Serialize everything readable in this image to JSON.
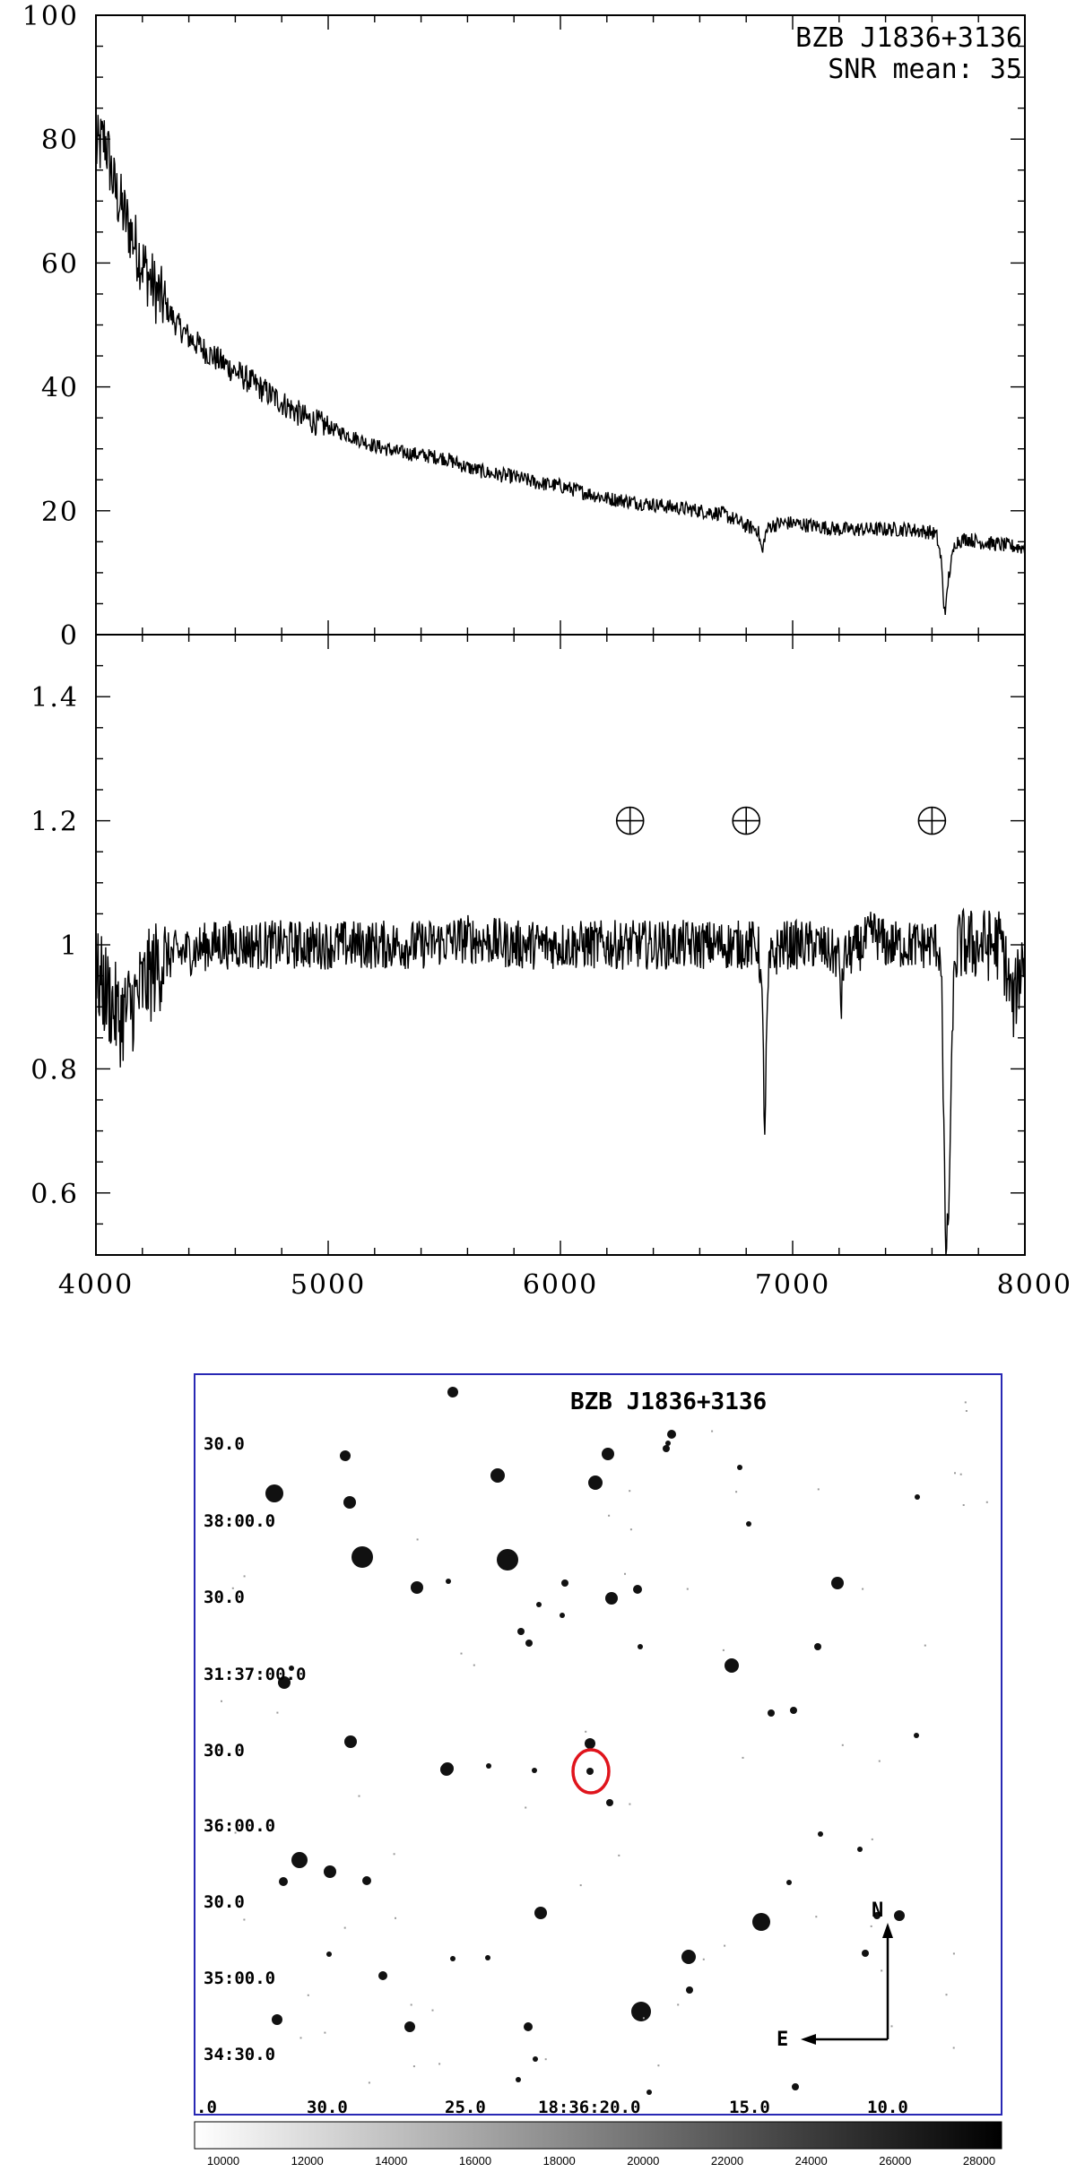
{
  "chart_data": [
    {
      "type": "line",
      "panel": "flux",
      "annotation": [
        "BZB J1836+3136",
        "SNR mean: 35"
      ],
      "xlim": [
        4000,
        8000
      ],
      "ylim": [
        0,
        100
      ],
      "y_ticks": [
        "0",
        "20",
        "40",
        "60",
        "80",
        "100"
      ],
      "series": [
        {
          "x": [
            4000,
            4040,
            4080,
            4120,
            4160,
            4200,
            4250,
            4300,
            4350,
            4400,
            4450,
            4500,
            4600,
            4700,
            4800,
            4900,
            5000,
            5100,
            5200,
            5300,
            5400,
            5500,
            5600,
            5700,
            5800,
            5900,
            6000,
            6100,
            6200,
            6300,
            6400,
            6500,
            6600,
            6700,
            6780,
            6800,
            6850,
            6870,
            6880,
            6900,
            6950,
            7000,
            7100,
            7200,
            7300,
            7400,
            7500,
            7600,
            7620,
            7640,
            7650,
            7660,
            7670,
            7680,
            7700,
            7750,
            7800,
            7900,
            8000
          ],
          "y": [
            78,
            80,
            72,
            68,
            64,
            60,
            56,
            53,
            50,
            48,
            46.5,
            45,
            42.5,
            40,
            37.5,
            35,
            33.5,
            32,
            30.5,
            29.5,
            29,
            28.5,
            27,
            26,
            25.5,
            24.5,
            24,
            23,
            22,
            21.5,
            21,
            20.5,
            20,
            19.5,
            18,
            17.5,
            17,
            13,
            16,
            17.5,
            18,
            18,
            17.5,
            17,
            17,
            17,
            17,
            16.5,
            16,
            12,
            5,
            4,
            9,
            11,
            15,
            15.5,
            15,
            14.5,
            14
          ]
        }
      ]
    },
    {
      "type": "line",
      "panel": "normalized",
      "xlim": [
        4000,
        8000
      ],
      "ylim": [
        0.5,
        1.5
      ],
      "x_ticks": [
        "4000",
        "5000",
        "6000",
        "7000",
        "8000"
      ],
      "y_ticks": [
        "0.6",
        "0.8",
        "1",
        "1.2",
        "1.4"
      ],
      "telluric_markers": [
        {
          "x": 6300,
          "y": 1.2
        },
        {
          "x": 6800,
          "y": 1.2
        },
        {
          "x": 7600,
          "y": 1.2
        }
      ],
      "series": [
        {
          "x": [
            4000,
            4050,
            4100,
            4150,
            4200,
            4250,
            4300,
            4400,
            4500,
            4600,
            4700,
            4800,
            5000,
            5200,
            5400,
            5600,
            5800,
            6000,
            6200,
            6400,
            6600,
            6800,
            6850,
            6860,
            6870,
            6880,
            6890,
            6900,
            6950,
            7000,
            7100,
            7200,
            7210,
            7220,
            7300,
            7350,
            7400,
            7500,
            7600,
            7620,
            7640,
            7650,
            7660,
            7670,
            7680,
            7690,
            7700,
            7720,
            7750,
            7800,
            7900,
            7950,
            8000
          ],
          "y": [
            0.95,
            0.92,
            0.88,
            0.9,
            0.93,
            0.96,
            0.98,
            0.99,
            1.0,
            1.0,
            1.0,
            1.0,
            1.0,
            1.0,
            1.0,
            1.01,
            1.0,
            1.0,
            1.0,
            1.0,
            1.0,
            1.0,
            1.0,
            0.97,
            0.88,
            0.7,
            0.88,
            0.97,
            1.0,
            1.0,
            1.0,
            0.98,
            0.9,
            0.98,
            1.0,
            1.02,
            1.0,
            1.0,
            1.0,
            1.0,
            0.98,
            0.7,
            0.5,
            0.55,
            0.7,
            0.9,
            0.98,
            1.0,
            1.0,
            1.0,
            1.0,
            0.9,
            1.0
          ]
        }
      ]
    }
  ],
  "finding_chart": {
    "title": "BZB J1836+3136",
    "dec_labels": [
      "30.0",
      "38:00.0",
      "30.0",
      "31:37:00.0",
      "30.0",
      "36:00.0",
      "30.0",
      "35:00.0",
      "34:30.0"
    ],
    "ra_labels": [
      ".0",
      "30.0",
      "25.0",
      "18:36:20.0",
      "15.0",
      "10.0"
    ],
    "north_label": "N",
    "east_label": "E",
    "target_circle_color": "#e0141c",
    "frame_color": "#2828b4",
    "colorbar_labels": [
      "10000",
      "12000",
      "14000",
      "16000",
      "18000",
      "20000",
      "22000",
      "24000",
      "26000",
      "28000"
    ]
  }
}
